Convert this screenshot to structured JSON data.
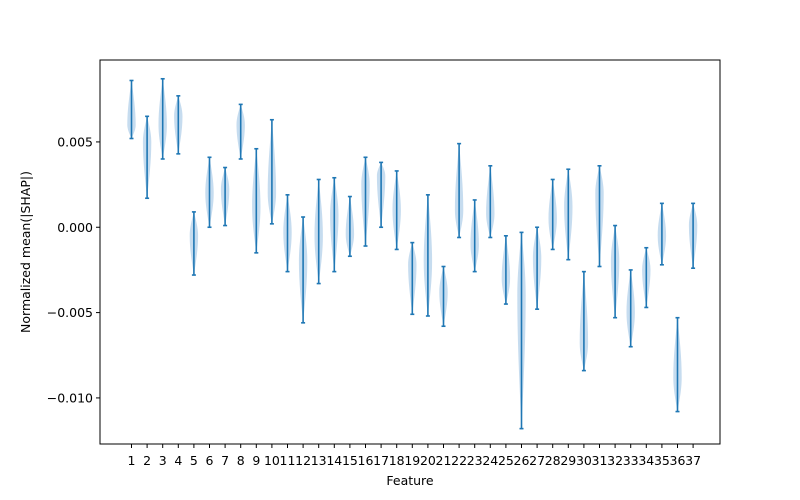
{
  "chart_data": {
    "type": "violin",
    "title": "",
    "xlabel": "Feature",
    "ylabel": "Normalized mean(|SHAP|)",
    "ylim": [
      -0.0127,
      0.0098
    ],
    "yticks": [
      0.005,
      0.0,
      -0.005,
      -0.01
    ],
    "ytick_labels": [
      "0.005",
      "0.000",
      "−0.005",
      "−0.010"
    ],
    "grid": false,
    "legend": "none",
    "colors": {
      "body": "#bcd6ec",
      "line": "#1f77b4"
    },
    "categories": [
      "1",
      "2",
      "3",
      "4",
      "5",
      "6",
      "7",
      "8",
      "9",
      "10",
      "11",
      "12",
      "13",
      "14",
      "15",
      "16",
      "17",
      "18",
      "19",
      "20",
      "21",
      "22",
      "23",
      "24",
      "25",
      "26",
      "27",
      "28",
      "29",
      "30",
      "31",
      "32",
      "33",
      "34",
      "35",
      "36",
      "37"
    ],
    "violins": [
      {
        "min": 0.0052,
        "max": 0.0086,
        "center": 0.006
      },
      {
        "min": 0.0017,
        "max": 0.0065,
        "center": 0.005
      },
      {
        "min": 0.004,
        "max": 0.0087,
        "center": 0.006
      },
      {
        "min": 0.0043,
        "max": 0.0077,
        "center": 0.0065
      },
      {
        "min": -0.0028,
        "max": 0.0009,
        "center": -0.0005
      },
      {
        "min": 0.0,
        "max": 0.0041,
        "center": 0.002
      },
      {
        "min": 0.0001,
        "max": 0.0035,
        "center": 0.0022
      },
      {
        "min": 0.004,
        "max": 0.0072,
        "center": 0.006
      },
      {
        "min": -0.0015,
        "max": 0.0046,
        "center": 0.0012
      },
      {
        "min": 0.0002,
        "max": 0.0063,
        "center": 0.002
      },
      {
        "min": -0.0026,
        "max": 0.0019,
        "center": -0.0003
      },
      {
        "min": -0.0056,
        "max": 0.0006,
        "center": -0.002
      },
      {
        "min": -0.0033,
        "max": 0.0028,
        "center": -0.0005
      },
      {
        "min": -0.0026,
        "max": 0.0029,
        "center": 0.0007
      },
      {
        "min": -0.0017,
        "max": 0.0018,
        "center": -0.0004
      },
      {
        "min": -0.0011,
        "max": 0.0041,
        "center": 0.0025
      },
      {
        "min": 0.0,
        "max": 0.0038,
        "center": 0.003
      },
      {
        "min": -0.0013,
        "max": 0.0033,
        "center": 0.001
      },
      {
        "min": -0.0051,
        "max": -0.0009,
        "center": -0.0022
      },
      {
        "min": -0.0052,
        "max": 0.0019,
        "center": -0.002
      },
      {
        "min": -0.0058,
        "max": -0.0023,
        "center": -0.0038
      },
      {
        "min": -0.0006,
        "max": 0.0049,
        "center": 0.001
      },
      {
        "min": -0.0026,
        "max": 0.0016,
        "center": -0.001
      },
      {
        "min": -0.0006,
        "max": 0.0036,
        "center": 0.0008
      },
      {
        "min": -0.0045,
        "max": -0.0005,
        "center": -0.003
      },
      {
        "min": -0.0118,
        "max": -0.0003,
        "center": -0.004
      },
      {
        "min": -0.0048,
        "max": 0.0,
        "center": -0.0018
      },
      {
        "min": -0.0013,
        "max": 0.0028,
        "center": 0.0005
      },
      {
        "min": -0.0019,
        "max": 0.0034,
        "center": 0.0012
      },
      {
        "min": -0.0084,
        "max": -0.0026,
        "center": -0.0068
      },
      {
        "min": -0.0023,
        "max": 0.0036,
        "center": 0.002
      },
      {
        "min": -0.0053,
        "max": 0.0001,
        "center": -0.002
      },
      {
        "min": -0.007,
        "max": -0.0025,
        "center": -0.005
      },
      {
        "min": -0.0047,
        "max": -0.0012,
        "center": -0.0025
      },
      {
        "min": -0.0022,
        "max": 0.0014,
        "center": -0.0005
      },
      {
        "min": -0.0108,
        "max": -0.0053,
        "center": -0.0088
      },
      {
        "min": -0.0024,
        "max": 0.0014,
        "center": 0.0001
      }
    ]
  }
}
